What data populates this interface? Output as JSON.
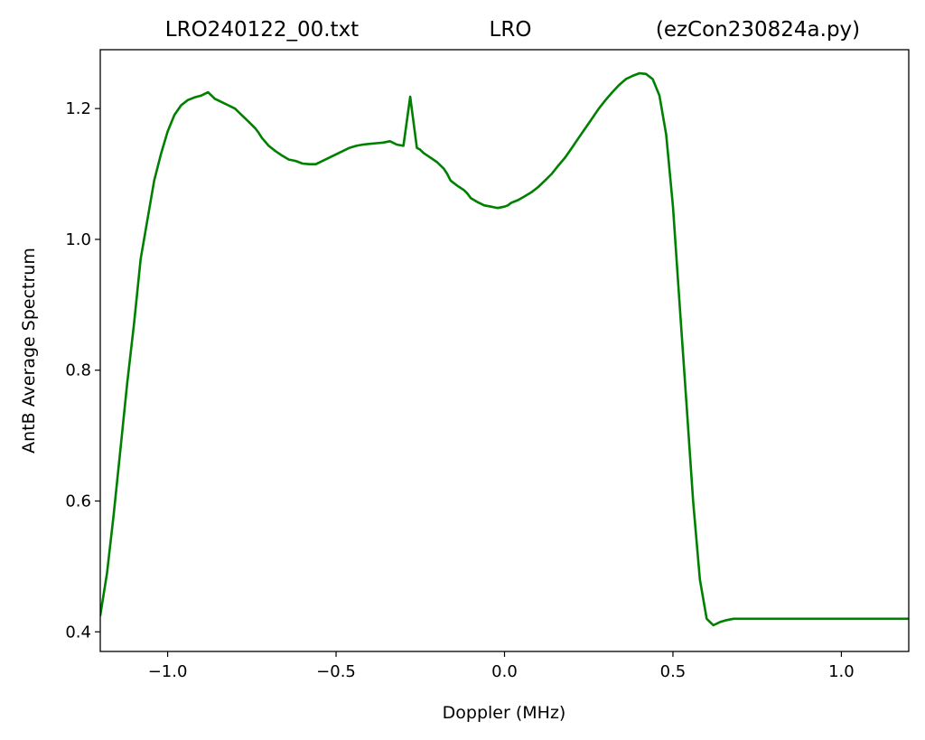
{
  "title": {
    "left": "LRO240122_00.txt",
    "center": "LRO",
    "right": "(ezCon230824a.py)"
  },
  "chart_data": {
    "type": "line",
    "xlabel": "Doppler (MHz)",
    "ylabel": "AntB Average Spectrum",
    "xlim": [
      -1.2,
      1.2
    ],
    "ylim": [
      0.37,
      1.29
    ],
    "xticks": [
      -1.0,
      -0.5,
      0.0,
      0.5,
      1.0
    ],
    "xtick_labels": [
      "−1.0",
      "−0.5",
      "0.0",
      "0.5",
      "1.0"
    ],
    "yticks": [
      0.4,
      0.6,
      0.8,
      1.0,
      1.2
    ],
    "ytick_labels": [
      "0.4",
      "0.6",
      "0.8",
      "1.0",
      "1.2"
    ],
    "grid": false,
    "series": [
      {
        "color": "#008000",
        "x": [
          -1.2,
          -1.18,
          -1.16,
          -1.14,
          -1.12,
          -1.1,
          -1.08,
          -1.06,
          -1.04,
          -1.02,
          -1.0,
          -0.98,
          -0.96,
          -0.94,
          -0.92,
          -0.9,
          -0.88,
          -0.86,
          -0.84,
          -0.82,
          -0.8,
          -0.78,
          -0.76,
          -0.74,
          -0.73,
          -0.72,
          -0.7,
          -0.68,
          -0.66,
          -0.64,
          -0.62,
          -0.6,
          -0.58,
          -0.56,
          -0.54,
          -0.52,
          -0.5,
          -0.48,
          -0.46,
          -0.44,
          -0.42,
          -0.4,
          -0.38,
          -0.36,
          -0.34,
          -0.32,
          -0.3,
          -0.28,
          -0.26,
          -0.25,
          -0.24,
          -0.22,
          -0.2,
          -0.18,
          -0.17,
          -0.16,
          -0.14,
          -0.12,
          -0.11,
          -0.1,
          -0.08,
          -0.06,
          -0.04,
          -0.03,
          -0.02,
          0.0,
          0.01,
          0.02,
          0.04,
          0.06,
          0.08,
          0.1,
          0.12,
          0.14,
          0.16,
          0.18,
          0.2,
          0.22,
          0.24,
          0.26,
          0.28,
          0.3,
          0.32,
          0.34,
          0.36,
          0.38,
          0.4,
          0.42,
          0.44,
          0.46,
          0.48,
          0.5,
          0.52,
          0.54,
          0.56,
          0.58,
          0.6,
          0.62,
          0.64,
          0.66,
          0.68,
          0.7,
          0.72,
          0.74,
          0.76,
          0.78,
          0.8,
          0.82,
          0.84,
          0.86,
          0.88,
          0.9,
          0.92,
          0.94,
          0.96,
          0.98,
          1.0,
          1.02,
          1.04,
          1.06,
          1.08,
          1.1,
          1.12,
          1.14,
          1.16,
          1.18,
          1.2
        ],
        "y": [
          0.425,
          0.49,
          0.58,
          0.68,
          0.78,
          0.87,
          0.97,
          1.03,
          1.09,
          1.13,
          1.165,
          1.19,
          1.205,
          1.213,
          1.217,
          1.22,
          1.225,
          1.215,
          1.21,
          1.205,
          1.2,
          1.19,
          1.18,
          1.17,
          1.163,
          1.155,
          1.143,
          1.135,
          1.128,
          1.122,
          1.12,
          1.116,
          1.115,
          1.115,
          1.12,
          1.125,
          1.13,
          1.135,
          1.14,
          1.143,
          1.145,
          1.146,
          1.147,
          1.148,
          1.15,
          1.145,
          1.143,
          1.218,
          1.14,
          1.137,
          1.132,
          1.125,
          1.118,
          1.108,
          1.1,
          1.09,
          1.082,
          1.075,
          1.07,
          1.063,
          1.057,
          1.052,
          1.05,
          1.049,
          1.048,
          1.05,
          1.052,
          1.056,
          1.06,
          1.066,
          1.072,
          1.08,
          1.09,
          1.1,
          1.113,
          1.125,
          1.14,
          1.155,
          1.17,
          1.185,
          1.2,
          1.213,
          1.225,
          1.236,
          1.245,
          1.25,
          1.254,
          1.253,
          1.245,
          1.22,
          1.16,
          1.05,
          0.9,
          0.75,
          0.6,
          0.48,
          0.42,
          0.41,
          0.415,
          0.418,
          0.42,
          0.42,
          0.42,
          0.42,
          0.42,
          0.42,
          0.42,
          0.42,
          0.42,
          0.42,
          0.42,
          0.42,
          0.42,
          0.42,
          0.42,
          0.42,
          0.42,
          0.42,
          0.42,
          0.42,
          0.42,
          0.42,
          0.42,
          0.42,
          0.42,
          0.42,
          0.42
        ]
      }
    ]
  }
}
